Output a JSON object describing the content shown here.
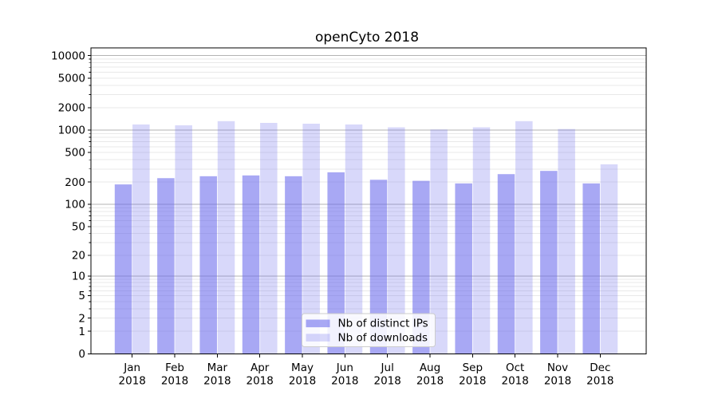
{
  "chart_data": {
    "type": "bar",
    "title": "openCyto 2018",
    "categories": [
      {
        "month": "Jan",
        "year": "2018"
      },
      {
        "month": "Feb",
        "year": "2018"
      },
      {
        "month": "Mar",
        "year": "2018"
      },
      {
        "month": "Apr",
        "year": "2018"
      },
      {
        "month": "May",
        "year": "2018"
      },
      {
        "month": "Jun",
        "year": "2018"
      },
      {
        "month": "Jul",
        "year": "2018"
      },
      {
        "month": "Aug",
        "year": "2018"
      },
      {
        "month": "Sep",
        "year": "2018"
      },
      {
        "month": "Oct",
        "year": "2018"
      },
      {
        "month": "Nov",
        "year": "2018"
      },
      {
        "month": "Dec",
        "year": "2018"
      }
    ],
    "series": [
      {
        "name": "Nb of distinct IPs",
        "color": "#6464eb",
        "opacity": 0.56,
        "values": [
          186,
          226,
          240,
          246,
          240,
          271,
          215,
          208,
          192,
          256,
          283,
          192
        ]
      },
      {
        "name": "Nb of downloads",
        "color": "#6464eb",
        "opacity": 0.25,
        "values": [
          1190,
          1160,
          1320,
          1250,
          1220,
          1190,
          1090,
          1020,
          1090,
          1320,
          1035,
          347
        ]
      }
    ],
    "xlabel": "",
    "ylabel": "",
    "yscale": "log1p",
    "y_ticks": [
      10000,
      5000,
      2000,
      1000,
      500,
      200,
      100,
      50,
      20,
      10,
      5,
      2,
      1,
      0
    ],
    "ylim": [
      0,
      12700
    ],
    "grid": true,
    "legend_position": "lower center"
  },
  "colors": {
    "bar_base": "#6464eb",
    "major_grid": "#b3b3b3",
    "minor_grid": "#e9e9e9",
    "axis": "#000000",
    "legend_border": "#cccccc",
    "background": "#ffffff"
  }
}
